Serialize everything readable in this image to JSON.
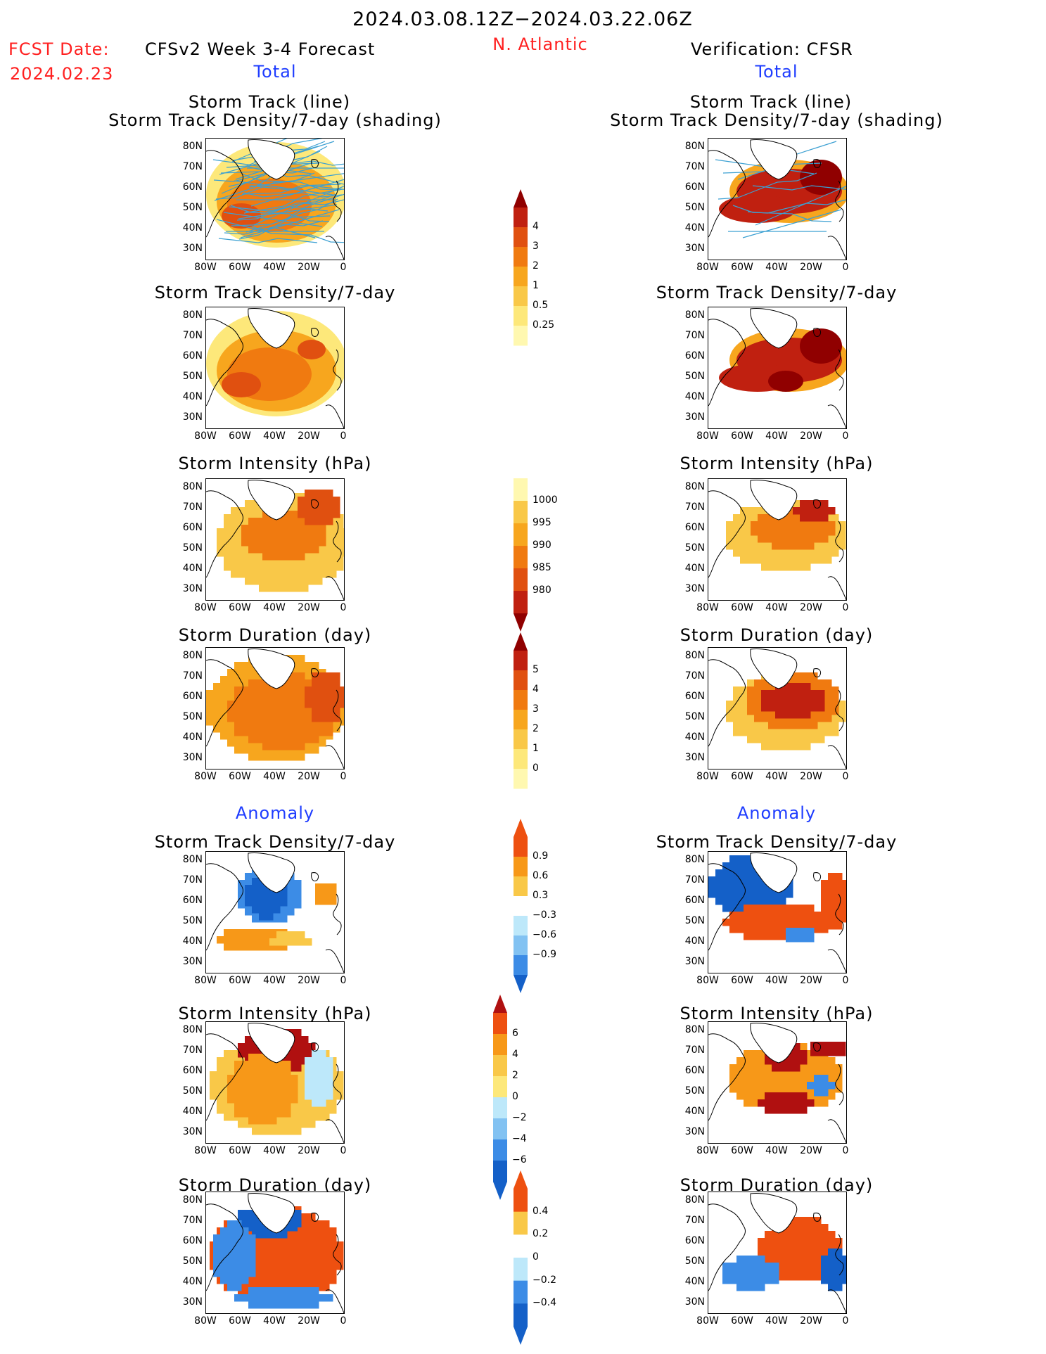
{
  "header": {
    "period": "2024.03.08.12Z−2024.03.22.06Z",
    "fcst_label": "FCST Date:",
    "fcst_date": "2024.02.23",
    "model_title": "CFSv2 Week 3-4 Forecast",
    "region": "N. Atlantic",
    "verification_title": "Verification: CFSR",
    "total_left": "Total",
    "total_right": "Total",
    "anomaly_left": "Anomaly",
    "anomaly_right": "Anomaly"
  },
  "panels": {
    "track_line": "Storm Track (line)",
    "track_shading": "Storm Track Density/7-day (shading)",
    "density": "Storm Track Density/7-day",
    "intensity": "Storm Intensity (hPa)",
    "duration": "Storm Duration (day)"
  },
  "axes": {
    "lat_labels": [
      "80N",
      "70N",
      "60N",
      "50N",
      "40N",
      "30N"
    ],
    "lon_labels": [
      "80W",
      "60W",
      "40W",
      "20W",
      "0"
    ]
  },
  "colorbars": {
    "density_total": [
      "4",
      "3",
      "2",
      "1",
      "0.5",
      "0.25"
    ],
    "intensity_total": [
      "1000",
      "995",
      "990",
      "985",
      "980"
    ],
    "duration_total": [
      "5",
      "4",
      "3",
      "2",
      "1",
      "0"
    ],
    "density_anom": [
      "0.9",
      "0.6",
      "0.3",
      "−0.3",
      "−0.6",
      "−0.9"
    ],
    "intensity_anom": [
      "6",
      "4",
      "2",
      "0",
      "−2",
      "−4",
      "−6"
    ],
    "duration_anom": [
      "0.4",
      "0.2",
      "0",
      "−0.2",
      "−0.4"
    ]
  },
  "colors": {
    "total_scale": [
      "#fff8b0",
      "#fde87a",
      "#f9c848",
      "#f7a61e",
      "#f07a10",
      "#e05010",
      "#c02010",
      "#900000"
    ],
    "anom_scale": [
      "#1460c8",
      "#3c8ce6",
      "#82c2f2",
      "#bde8fa",
      "#ffffff",
      "#fde87a",
      "#f9c848",
      "#f79818",
      "#ee5010",
      "#b01010"
    ],
    "track_line": "#3ca0d2",
    "title_red": "#ff2020",
    "title_blue": "#1e3cff"
  }
}
